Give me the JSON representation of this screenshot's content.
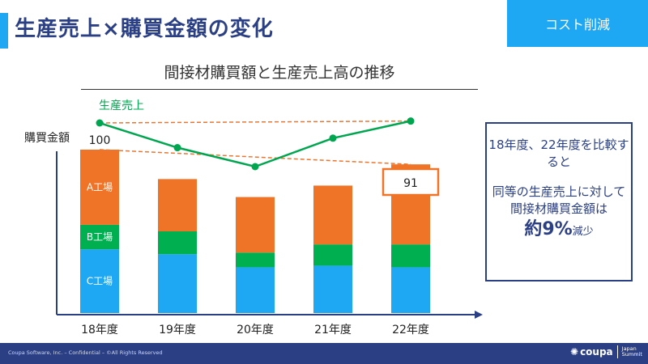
{
  "slide": {
    "title": "生産売上×購買金額の変化",
    "tag": "コスト削減"
  },
  "chart_data": {
    "type": "bar",
    "title": "間接材購買額と生産売上高の推移",
    "ylabel": "購買金額",
    "categories": [
      "18年度",
      "19年度",
      "20年度",
      "21年度",
      "22年度"
    ],
    "stacked": true,
    "ylim": [
      0,
      100
    ],
    "series": [
      {
        "name": "C工場",
        "color": "#1ea7f2",
        "values": [
          39,
          36,
          28,
          29,
          28
        ]
      },
      {
        "name": "B工場",
        "color": "#00b050",
        "values": [
          15,
          14,
          9,
          13,
          14
        ]
      },
      {
        "name": "A工場",
        "color": "#f07428",
        "values": [
          46,
          32,
          34,
          36,
          49
        ]
      }
    ],
    "data_labels": [
      {
        "category": "18年度",
        "value": "100"
      },
      {
        "category": "22年度",
        "value": "91"
      }
    ],
    "line_series": {
      "name": "生産売上",
      "color": "#00a64f",
      "values": [
        96,
        83,
        73,
        88,
        97
      ],
      "ylim": [
        0,
        100
      ]
    },
    "trend_color": "#f07428",
    "grid": false,
    "axis_color": "#2b3f85"
  },
  "summary": {
    "line1": "18年度、22年度を比較すると",
    "line2": "同等の生産売上に対して間接材購買金額は",
    "emphasis": "約9%",
    "suffix": "減少"
  },
  "footer": {
    "text": "Coupa Software, Inc. – Confidential – ©All Rights Reserved",
    "logo_word": "coupa",
    "logo_sub_1": "Japan",
    "logo_sub_2": "Summit"
  }
}
